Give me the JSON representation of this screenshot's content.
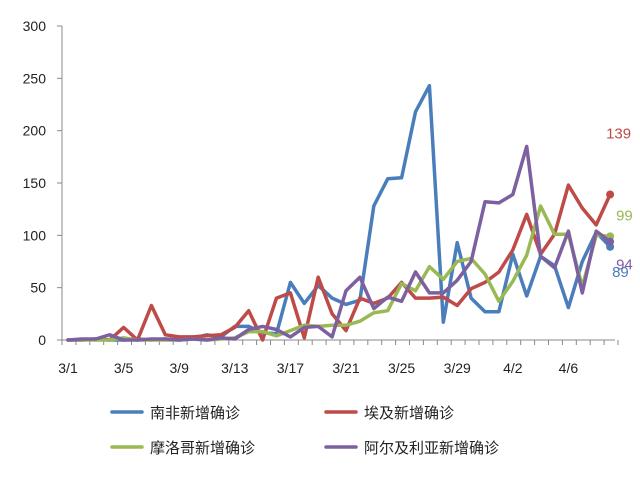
{
  "chart_data": {
    "type": "line",
    "x": [
      "3/1",
      "3/2",
      "3/3",
      "3/4",
      "3/5",
      "3/6",
      "3/7",
      "3/8",
      "3/9",
      "3/10",
      "3/11",
      "3/12",
      "3/13",
      "3/14",
      "3/15",
      "3/16",
      "3/17",
      "3/18",
      "3/19",
      "3/20",
      "3/21",
      "3/22",
      "3/23",
      "3/24",
      "3/25",
      "3/26",
      "3/27",
      "3/28",
      "3/29",
      "3/30",
      "3/31",
      "4/1",
      "4/2",
      "4/3",
      "4/4",
      "4/5",
      "4/6",
      "4/7",
      "4/8",
      "4/9"
    ],
    "x_tick_labels": [
      "3/1",
      "3/5",
      "3/9",
      "3/13",
      "3/17",
      "3/21",
      "3/25",
      "3/29",
      "4/2",
      "4/6"
    ],
    "y_ticks": [
      0,
      50,
      100,
      150,
      200,
      250,
      300
    ],
    "ylim": [
      0,
      300
    ],
    "series": [
      {
        "name": "南非新增确诊",
        "color": "#4a7ebb",
        "end_label": "89",
        "values": [
          0,
          0,
          1,
          0,
          0,
          1,
          0,
          1,
          0,
          2,
          5,
          3,
          13,
          13,
          7,
          6,
          55,
          35,
          52,
          40,
          34,
          38,
          128,
          154,
          155,
          218,
          243,
          17,
          93,
          40,
          27,
          27,
          82,
          42,
          80,
          71,
          31,
          75,
          103,
          89
        ]
      },
      {
        "name": "埃及新增确诊",
        "color": "#be4b48",
        "end_label": "139",
        "values": [
          0,
          0,
          1,
          0,
          12,
          0,
          33,
          5,
          3,
          3,
          4,
          5,
          12,
          28,
          0,
          40,
          45,
          2,
          60,
          25,
          9,
          40,
          35,
          40,
          55,
          40,
          40,
          41,
          33,
          49,
          55,
          65,
          86,
          120,
          82,
          101,
          148,
          126,
          110,
          139
        ]
      },
      {
        "name": "摩洛哥新增确诊",
        "color": "#98b954",
        "end_label": "99",
        "values": [
          0,
          0,
          0,
          0,
          2,
          0,
          0,
          0,
          0,
          1,
          0,
          1,
          2,
          8,
          8,
          4,
          9,
          14,
          13,
          14,
          14,
          18,
          26,
          28,
          54,
          47,
          70,
          58,
          75,
          78,
          63,
          37,
          56,
          81,
          128,
          101,
          101,
          51,
          100,
          99
        ]
      },
      {
        "name": "阿尔及利亚新增确诊",
        "color": "#7d60a0",
        "end_label": "94",
        "values": [
          0,
          1,
          1,
          5,
          0,
          0,
          1,
          1,
          0,
          1,
          0,
          2,
          1,
          10,
          13,
          10,
          3,
          12,
          13,
          3,
          47,
          60,
          30,
          41,
          37,
          65,
          45,
          45,
          57,
          75,
          132,
          131,
          139,
          185,
          80,
          69,
          104,
          45,
          104,
          94
        ]
      }
    ]
  }
}
